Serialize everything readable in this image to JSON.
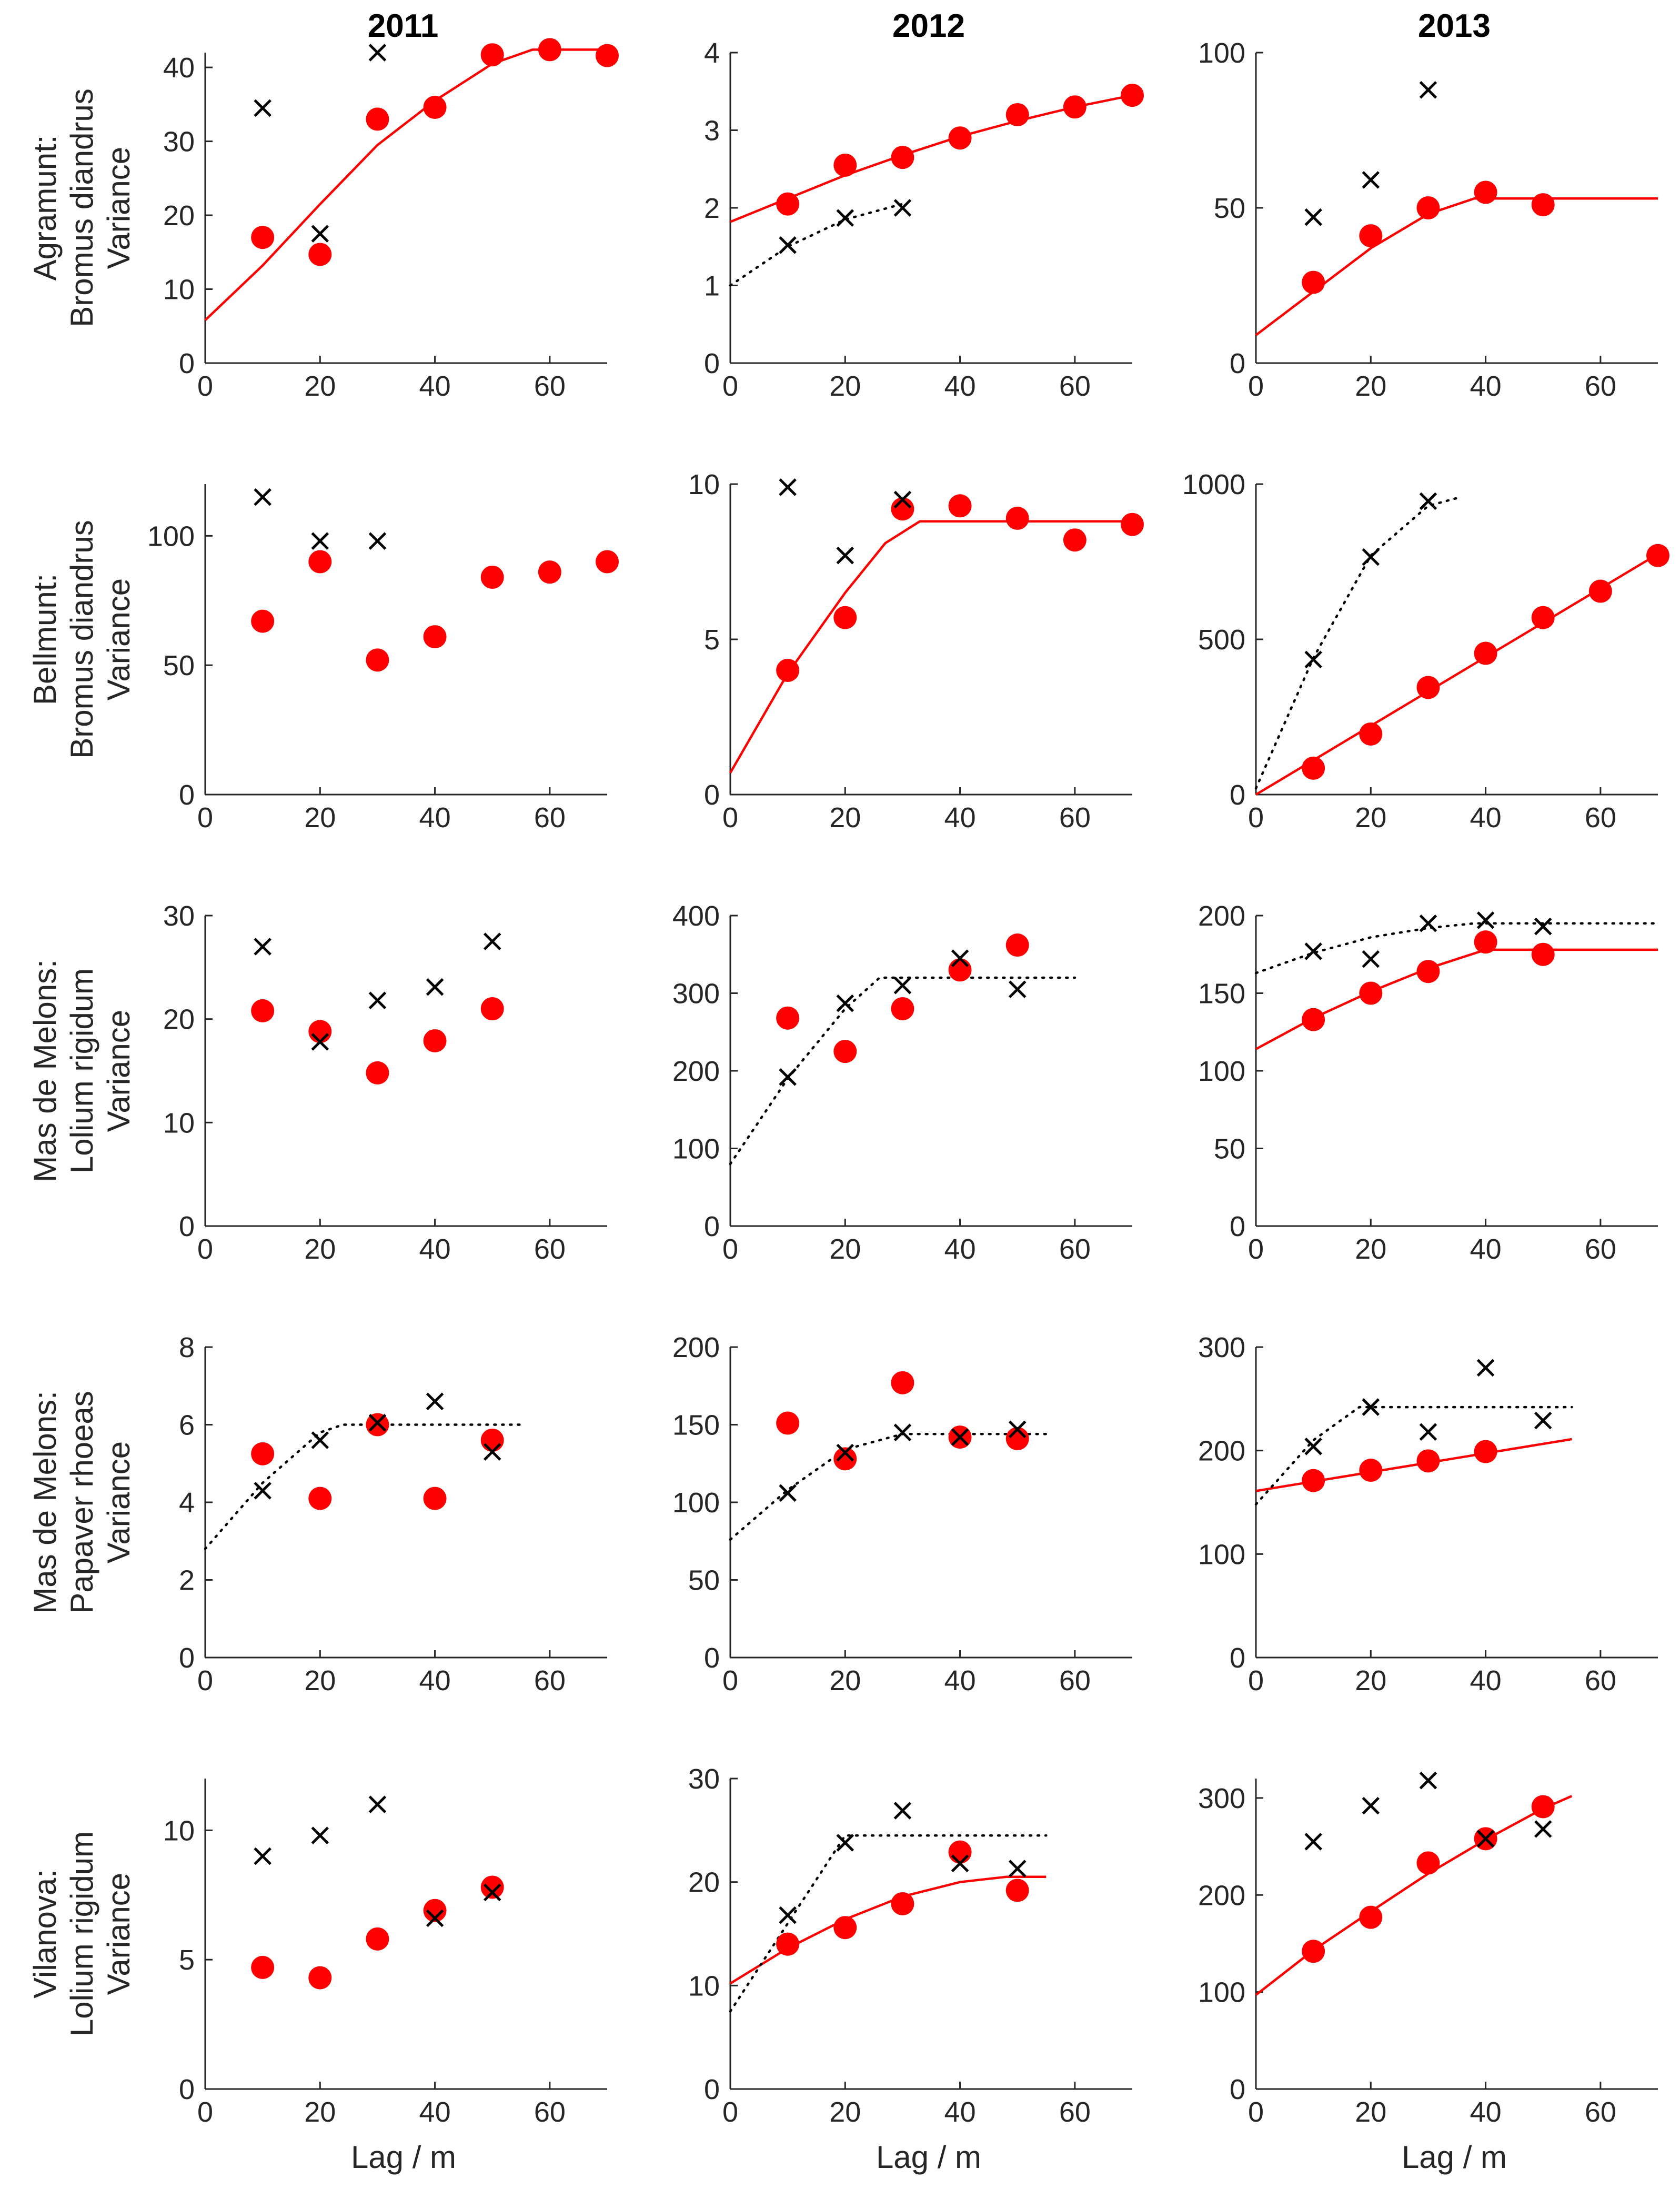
{
  "figure": {
    "column_titles": [
      "2011",
      "2012",
      "2013"
    ],
    "row_labels": [
      [
        "Agramunt:",
        "Bromus diandrus",
        "Variance"
      ],
      [
        "Bellmunt:",
        "Bromus diandrus",
        "Variance"
      ],
      [
        "Mas de Melons:",
        "Lolium rigidum",
        "Variance"
      ],
      [
        "Mas de Melons:",
        "Papaver rhoeas",
        "Variance"
      ],
      [
        "Vilanova:",
        "Lolium rigidum",
        "Variance"
      ]
    ],
    "xlabel": "Lag / m",
    "colors": {
      "dots": "#ff0000",
      "cross": "#000000",
      "fit_line": "#ff0000",
      "fit_dotted": "#000000",
      "axis": "#262626"
    }
  },
  "chart_data": [
    {
      "type": "scatter",
      "row": 0,
      "col": 0,
      "xlim": [
        0,
        70
      ],
      "ylim": [
        0,
        42
      ],
      "xticks": [
        0,
        20,
        40,
        60
      ],
      "yticks": [
        0,
        10,
        20,
        30,
        40
      ],
      "series": [
        {
          "name": "dots",
          "marker": "circle",
          "x": [
            10,
            20,
            30,
            40,
            50,
            60,
            70
          ],
          "y": [
            17,
            14.7,
            33,
            34.6,
            41.7,
            42.4,
            41.6
          ]
        },
        {
          "name": "crosses",
          "marker": "x",
          "x": [
            10,
            20,
            30
          ],
          "y": [
            34.5,
            17.5,
            42
          ]
        },
        {
          "name": "fit",
          "style": "solid",
          "x": [
            0,
            10,
            20,
            30,
            40,
            50,
            57,
            70
          ],
          "y": [
            5.8,
            13.2,
            21.5,
            29.5,
            35.5,
            40.5,
            42.4,
            42.4
          ]
        }
      ]
    },
    {
      "type": "scatter",
      "row": 0,
      "col": 1,
      "xlim": [
        0,
        70
      ],
      "ylim": [
        0,
        4
      ],
      "xticks": [
        0,
        20,
        40,
        60
      ],
      "yticks": [
        0,
        1,
        2,
        3,
        4
      ],
      "series": [
        {
          "name": "dots",
          "marker": "circle",
          "x": [
            10,
            20,
            30,
            40,
            50,
            60,
            70
          ],
          "y": [
            2.05,
            2.55,
            2.65,
            2.9,
            3.2,
            3.3,
            3.45
          ]
        },
        {
          "name": "crosses",
          "marker": "x",
          "x": [
            10,
            20,
            30
          ],
          "y": [
            1.52,
            1.87,
            2.0
          ]
        },
        {
          "name": "fit",
          "style": "solid",
          "x": [
            0,
            10,
            20,
            30,
            40,
            50,
            60,
            70
          ],
          "y": [
            1.82,
            2.12,
            2.42,
            2.68,
            2.92,
            3.12,
            3.3,
            3.45
          ]
        },
        {
          "name": "fit_dotted",
          "style": "dotted",
          "x": [
            0,
            10,
            20,
            30
          ],
          "y": [
            1.0,
            1.5,
            1.85,
            2.05
          ]
        }
      ]
    },
    {
      "type": "scatter",
      "row": 0,
      "col": 2,
      "xlim": [
        0,
        70
      ],
      "ylim": [
        0,
        100
      ],
      "xticks": [
        0,
        20,
        40,
        60
      ],
      "yticks": [
        0,
        50,
        100
      ],
      "series": [
        {
          "name": "dots",
          "marker": "circle",
          "x": [
            10,
            20,
            30,
            40,
            50
          ],
          "y": [
            26,
            41,
            50,
            55,
            51
          ]
        },
        {
          "name": "crosses",
          "marker": "x",
          "x": [
            10,
            20,
            30
          ],
          "y": [
            47,
            59,
            88
          ]
        },
        {
          "name": "fit",
          "style": "solid",
          "x": [
            0,
            10,
            20,
            30,
            38,
            70
          ],
          "y": [
            9,
            23,
            37,
            48,
            53,
            53
          ]
        }
      ]
    },
    {
      "type": "scatter",
      "row": 1,
      "col": 0,
      "xlim": [
        0,
        70
      ],
      "ylim": [
        0,
        120
      ],
      "xticks": [
        0,
        20,
        40,
        60
      ],
      "yticks": [
        0,
        50,
        100
      ],
      "series": [
        {
          "name": "dots",
          "marker": "circle",
          "x": [
            10,
            20,
            30,
            40,
            50,
            60,
            70
          ],
          "y": [
            67,
            90,
            52,
            61,
            84,
            86,
            90
          ]
        },
        {
          "name": "crosses",
          "marker": "x",
          "x": [
            10,
            20,
            30
          ],
          "y": [
            115,
            98,
            98
          ]
        }
      ]
    },
    {
      "type": "scatter",
      "row": 1,
      "col": 1,
      "xlim": [
        0,
        70
      ],
      "ylim": [
        0,
        10
      ],
      "xticks": [
        0,
        20,
        40,
        60
      ],
      "yticks": [
        0,
        5,
        10
      ],
      "series": [
        {
          "name": "dots",
          "marker": "circle",
          "x": [
            10,
            20,
            30,
            40,
            50,
            60,
            70
          ],
          "y": [
            4.0,
            5.7,
            9.2,
            9.3,
            8.9,
            8.2,
            8.7
          ]
        },
        {
          "name": "crosses",
          "marker": "x",
          "x": [
            10,
            20,
            30
          ],
          "y": [
            9.9,
            7.7,
            9.5
          ]
        },
        {
          "name": "fit",
          "style": "solid",
          "x": [
            0,
            10,
            20,
            27,
            33,
            70
          ],
          "y": [
            0.7,
            3.9,
            6.5,
            8.1,
            8.8,
            8.8
          ]
        }
      ]
    },
    {
      "type": "scatter",
      "row": 1,
      "col": 2,
      "xlim": [
        0,
        70
      ],
      "ylim": [
        0,
        1000
      ],
      "xticks": [
        0,
        20,
        40,
        60
      ],
      "yticks": [
        0,
        500,
        1000
      ],
      "series": [
        {
          "name": "dots",
          "marker": "circle",
          "x": [
            10,
            20,
            30,
            40,
            50,
            60,
            70
          ],
          "y": [
            85,
            195,
            345,
            455,
            570,
            655,
            770
          ]
        },
        {
          "name": "crosses",
          "marker": "x",
          "x": [
            10,
            20,
            30
          ],
          "y": [
            435,
            765,
            945
          ]
        },
        {
          "name": "fit",
          "style": "solid",
          "x": [
            0,
            70
          ],
          "y": [
            0,
            775
          ]
        },
        {
          "name": "fit_dotted",
          "style": "dotted",
          "x": [
            0,
            10,
            20,
            30,
            35
          ],
          "y": [
            20,
            440,
            770,
            930,
            955
          ]
        }
      ]
    },
    {
      "type": "scatter",
      "row": 2,
      "col": 0,
      "xlim": [
        0,
        70
      ],
      "ylim": [
        0,
        30
      ],
      "xticks": [
        0,
        20,
        40,
        60
      ],
      "yticks": [
        0,
        10,
        20,
        30
      ],
      "series": [
        {
          "name": "dots",
          "marker": "circle",
          "x": [
            10,
            20,
            30,
            40,
            50
          ],
          "y": [
            20.8,
            18.8,
            14.8,
            17.9,
            21
          ]
        },
        {
          "name": "crosses",
          "marker": "x",
          "x": [
            10,
            20,
            30,
            40,
            50
          ],
          "y": [
            27,
            17.8,
            21.8,
            23.1,
            27.5
          ]
        }
      ]
    },
    {
      "type": "scatter",
      "row": 2,
      "col": 1,
      "xlim": [
        0,
        70
      ],
      "ylim": [
        0,
        400
      ],
      "xticks": [
        0,
        20,
        40,
        60
      ],
      "yticks": [
        0,
        100,
        200,
        300,
        400
      ],
      "series": [
        {
          "name": "dots",
          "marker": "circle",
          "x": [
            10,
            20,
            30,
            40,
            50
          ],
          "y": [
            268,
            225,
            280,
            330,
            362
          ]
        },
        {
          "name": "crosses",
          "marker": "x",
          "x": [
            10,
            20,
            30,
            40,
            50
          ],
          "y": [
            192,
            287,
            310,
            345,
            305
          ]
        },
        {
          "name": "fit_dotted",
          "style": "dotted",
          "x": [
            0,
            10,
            20,
            26,
            60
          ],
          "y": [
            80,
            190,
            280,
            320,
            320
          ]
        }
      ]
    },
    {
      "type": "scatter",
      "row": 2,
      "col": 2,
      "xlim": [
        0,
        70
      ],
      "ylim": [
        0,
        200
      ],
      "xticks": [
        0,
        20,
        40,
        60
      ],
      "yticks": [
        0,
        50,
        100,
        150,
        200
      ],
      "series": [
        {
          "name": "dots",
          "marker": "circle",
          "x": [
            10,
            20,
            30,
            40,
            50
          ],
          "y": [
            133,
            150,
            164,
            183,
            175
          ]
        },
        {
          "name": "crosses",
          "marker": "x",
          "x": [
            10,
            20,
            30,
            40,
            50
          ],
          "y": [
            177,
            172,
            195,
            197,
            193
          ]
        },
        {
          "name": "fit",
          "style": "solid",
          "x": [
            0,
            10,
            20,
            30,
            40,
            70
          ],
          "y": [
            114,
            134,
            151,
            166,
            178,
            178
          ]
        },
        {
          "name": "fit_dotted",
          "style": "dotted",
          "x": [
            0,
            10,
            20,
            30,
            38,
            70
          ],
          "y": [
            163,
            176,
            186,
            192,
            195,
            195
          ]
        }
      ]
    },
    {
      "type": "scatter",
      "row": 3,
      "col": 0,
      "xlim": [
        0,
        70
      ],
      "ylim": [
        0,
        8
      ],
      "xticks": [
        0,
        20,
        40,
        60
      ],
      "yticks": [
        0,
        2,
        4,
        6,
        8
      ],
      "series": [
        {
          "name": "dots",
          "marker": "circle",
          "x": [
            10,
            20,
            30,
            40,
            50
          ],
          "y": [
            5.25,
            4.1,
            6.0,
            4.1,
            5.6
          ]
        },
        {
          "name": "crosses",
          "marker": "x",
          "x": [
            10,
            20,
            30,
            40,
            50
          ],
          "y": [
            4.3,
            5.6,
            6.05,
            6.6,
            5.3
          ]
        },
        {
          "name": "fit_dotted",
          "style": "dotted",
          "x": [
            0,
            10,
            20,
            24,
            55
          ],
          "y": [
            2.8,
            4.5,
            5.8,
            6.0,
            6.0
          ]
        }
      ]
    },
    {
      "type": "scatter",
      "row": 3,
      "col": 1,
      "xlim": [
        0,
        70
      ],
      "ylim": [
        0,
        200
      ],
      "xticks": [
        0,
        20,
        40,
        60
      ],
      "yticks": [
        0,
        50,
        100,
        150,
        200
      ],
      "series": [
        {
          "name": "dots",
          "marker": "circle",
          "x": [
            10,
            20,
            30,
            40,
            50
          ],
          "y": [
            151,
            128,
            177,
            142,
            141
          ]
        },
        {
          "name": "crosses",
          "marker": "x",
          "x": [
            10,
            20,
            30,
            40,
            50
          ],
          "y": [
            106,
            132,
            145,
            142,
            147
          ]
        },
        {
          "name": "fit_dotted",
          "style": "dotted",
          "x": [
            0,
            10,
            20,
            30,
            55
          ],
          "y": [
            76,
            108,
            134,
            144,
            144
          ]
        }
      ]
    },
    {
      "type": "scatter",
      "row": 3,
      "col": 2,
      "xlim": [
        0,
        70
      ],
      "ylim": [
        0,
        300
      ],
      "xticks": [
        0,
        20,
        40,
        60
      ],
      "yticks": [
        0,
        100,
        200,
        300
      ],
      "series": [
        {
          "name": "dots",
          "marker": "circle",
          "x": [
            10,
            20,
            30,
            40
          ],
          "y": [
            171,
            181,
            190,
            199
          ]
        },
        {
          "name": "crosses",
          "marker": "x",
          "x": [
            10,
            20,
            30,
            40,
            50
          ],
          "y": [
            204,
            242,
            218,
            280,
            229
          ]
        },
        {
          "name": "fit",
          "style": "solid",
          "x": [
            0,
            55
          ],
          "y": [
            161,
            211
          ]
        },
        {
          "name": "fit_dotted",
          "style": "dotted",
          "x": [
            0,
            10,
            18,
            55
          ],
          "y": [
            148,
            210,
            242,
            242
          ]
        }
      ]
    },
    {
      "type": "scatter",
      "row": 4,
      "col": 0,
      "xlim": [
        0,
        70
      ],
      "ylim": [
        0,
        12
      ],
      "xticks": [
        0,
        20,
        40,
        60
      ],
      "yticks": [
        0,
        5,
        10
      ],
      "series": [
        {
          "name": "dots",
          "marker": "circle",
          "x": [
            10,
            20,
            30,
            40,
            50
          ],
          "y": [
            4.7,
            4.3,
            5.8,
            6.9,
            7.8
          ]
        },
        {
          "name": "crosses",
          "marker": "x",
          "x": [
            10,
            20,
            30,
            40,
            50
          ],
          "y": [
            9.0,
            9.8,
            11.0,
            6.6,
            7.6
          ]
        }
      ]
    },
    {
      "type": "scatter",
      "row": 4,
      "col": 1,
      "xlim": [
        0,
        70
      ],
      "ylim": [
        0,
        30
      ],
      "xticks": [
        0,
        20,
        40,
        60
      ],
      "yticks": [
        0,
        10,
        20,
        30
      ],
      "series": [
        {
          "name": "dots",
          "marker": "circle",
          "x": [
            10,
            20,
            30,
            40,
            50
          ],
          "y": [
            14,
            15.6,
            17.9,
            22.9,
            19.2
          ]
        },
        {
          "name": "crosses",
          "marker": "x",
          "x": [
            10,
            20,
            30,
            40,
            50
          ],
          "y": [
            16.8,
            23.8,
            26.9,
            21.8,
            21.3
          ]
        },
        {
          "name": "fit",
          "style": "solid",
          "x": [
            0,
            10,
            20,
            30,
            40,
            48,
            55
          ],
          "y": [
            10.2,
            13.6,
            16.4,
            18.6,
            20,
            20.5,
            20.5
          ]
        },
        {
          "name": "fit_dotted",
          "style": "dotted",
          "x": [
            0,
            10,
            20,
            55
          ],
          "y": [
            7.5,
            16,
            24.5,
            24.5
          ]
        }
      ]
    },
    {
      "type": "scatter",
      "row": 4,
      "col": 2,
      "xlim": [
        0,
        70
      ],
      "ylim": [
        0,
        320
      ],
      "xticks": [
        0,
        20,
        40,
        60
      ],
      "yticks": [
        0,
        100,
        200,
        300
      ],
      "series": [
        {
          "name": "dots",
          "marker": "circle",
          "x": [
            10,
            20,
            30,
            40,
            50
          ],
          "y": [
            142,
            177,
            233,
            258,
            291
          ]
        },
        {
          "name": "crosses",
          "marker": "x",
          "x": [
            10,
            20,
            30,
            40,
            50
          ],
          "y": [
            255,
            292,
            318,
            258,
            268
          ]
        },
        {
          "name": "fit",
          "style": "solid",
          "x": [
            0,
            10,
            20,
            30,
            40,
            50,
            55
          ],
          "y": [
            97,
            143,
            183,
            222,
            257,
            289,
            302
          ]
        }
      ]
    }
  ]
}
